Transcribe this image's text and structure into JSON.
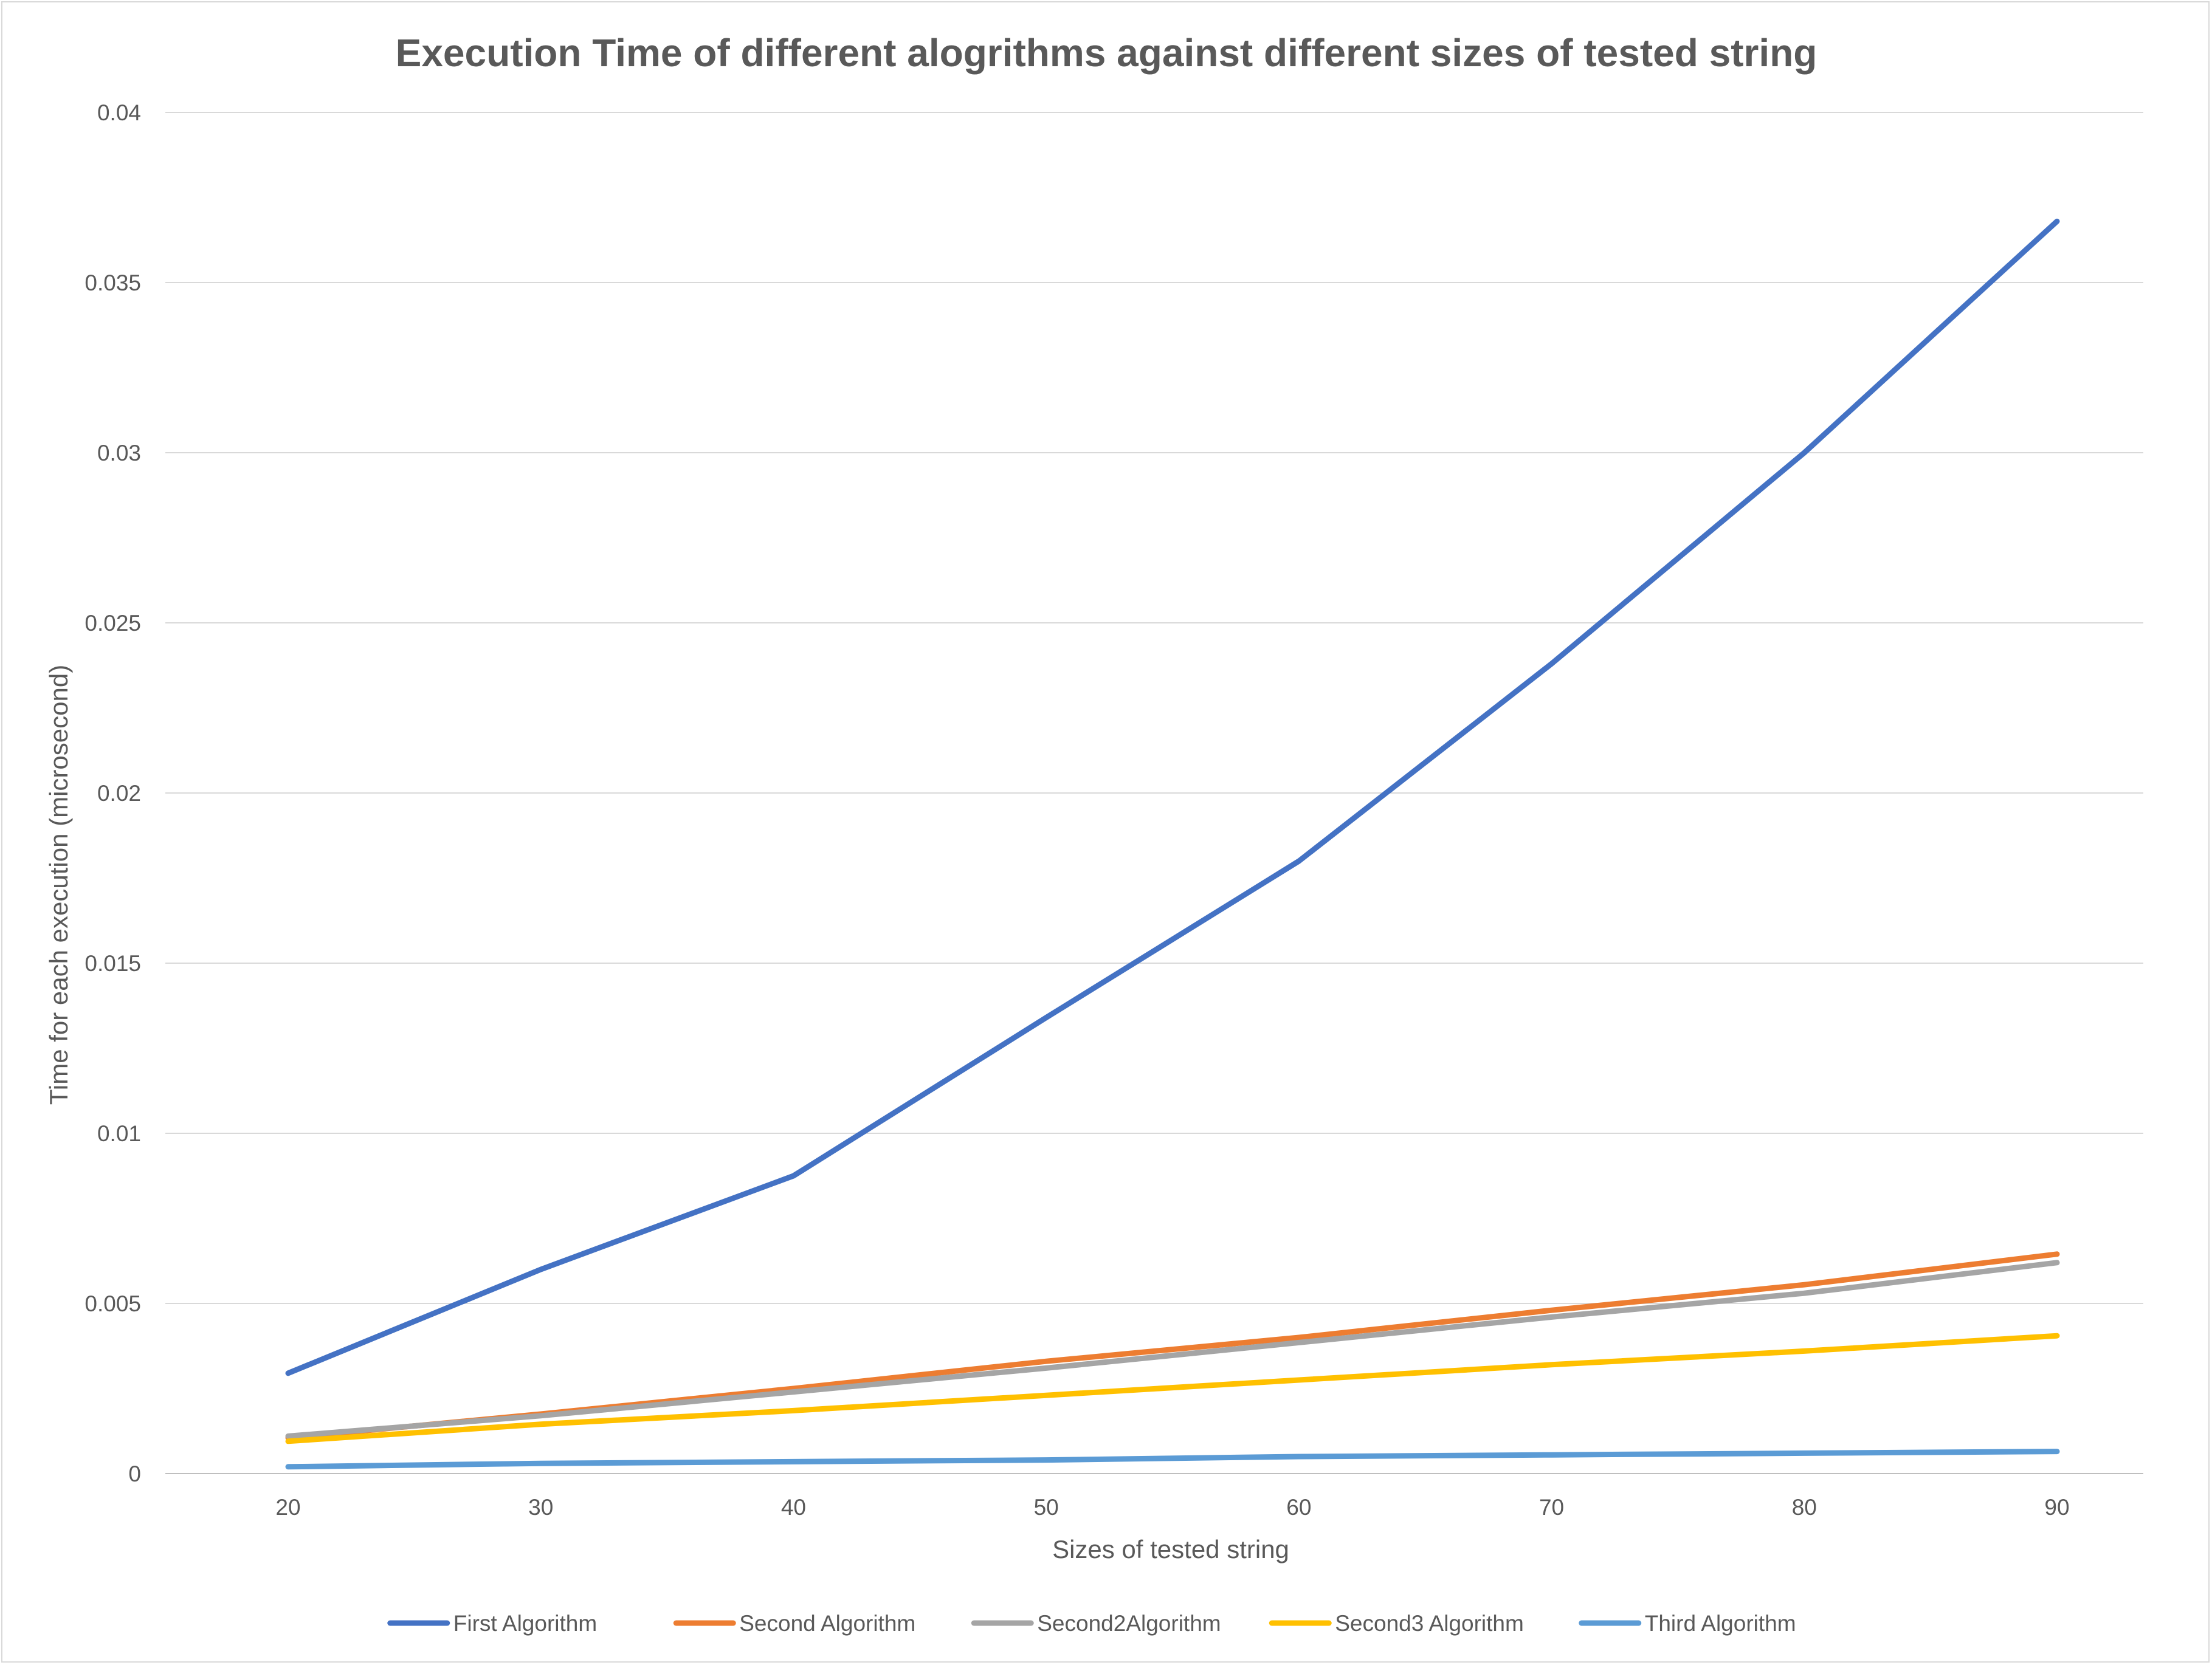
{
  "chart_data": {
    "type": "line",
    "title": "Execution Time of different alogrithms against different sizes of tested string",
    "xlabel": "Sizes of tested string",
    "ylabel": "Time for each execution (microsecond)",
    "x": [
      20,
      30,
      40,
      50,
      60,
      70,
      80,
      90
    ],
    "ylim": [
      0,
      0.04
    ],
    "yticks": [
      0,
      0.005,
      0.01,
      0.015,
      0.02,
      0.025,
      0.03,
      0.035,
      0.04
    ],
    "ytick_labels": [
      "0",
      "0.005",
      "0.01",
      "0.015",
      "0.02",
      "0.025",
      "0.03",
      "0.035",
      "0.04"
    ],
    "grid": "horizontal",
    "legend_position": "bottom",
    "series": [
      {
        "name": "First Algorithm",
        "color": "#4472c4",
        "values": [
          0.00295,
          0.006,
          0.00875,
          0.0134,
          0.018,
          0.0238,
          0.03,
          0.0368
        ]
      },
      {
        "name": "Second Algorithm",
        "color": "#ed7d31",
        "values": [
          0.00105,
          0.00175,
          0.0025,
          0.0033,
          0.004,
          0.0048,
          0.00555,
          0.00645
        ]
      },
      {
        "name": "Second2Algorithm",
        "color": "#a5a5a5",
        "values": [
          0.0011,
          0.0017,
          0.0024,
          0.0031,
          0.00385,
          0.0046,
          0.0053,
          0.0062
        ]
      },
      {
        "name": "Second3 Algorithm",
        "color": "#ffc000",
        "values": [
          0.00095,
          0.00145,
          0.00185,
          0.0023,
          0.00275,
          0.0032,
          0.0036,
          0.00405
        ]
      },
      {
        "name": "Third Algorithm",
        "color": "#5b9bd5",
        "values": [
          0.0002,
          0.0003,
          0.00035,
          0.0004,
          0.0005,
          0.00055,
          0.0006,
          0.00065
        ]
      }
    ]
  }
}
